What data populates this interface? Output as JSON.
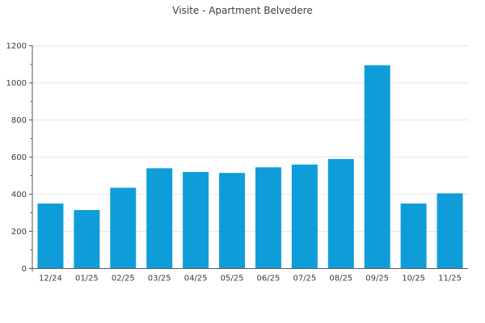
{
  "title": "Visite - Apartment Belvedere",
  "colors": {
    "bar": "#0f9dd9",
    "grid": "#e6e6e6",
    "axis": "#565656",
    "tick_label": "#3a3a3a",
    "title_text": "#3d3d3d",
    "background": "#ffffff"
  },
  "chart_data": {
    "type": "bar",
    "title": "Visite - Apartment Belvedere",
    "categories": [
      "12/24",
      "01/25",
      "02/25",
      "03/25",
      "04/25",
      "05/25",
      "06/25",
      "07/25",
      "08/25",
      "09/25",
      "10/25",
      "11/25"
    ],
    "values": [
      350,
      315,
      435,
      540,
      520,
      515,
      545,
      560,
      590,
      1095,
      350,
      405
    ],
    "xlabel": "",
    "ylabel": "",
    "ylim": [
      0,
      1200
    ],
    "ytick_step": 200,
    "yminor_step": 100,
    "ytick_labels": [
      "0",
      "200",
      "400",
      "600",
      "800",
      "1000",
      "1200"
    ],
    "grid": "horizontal-only",
    "legend": "none"
  }
}
